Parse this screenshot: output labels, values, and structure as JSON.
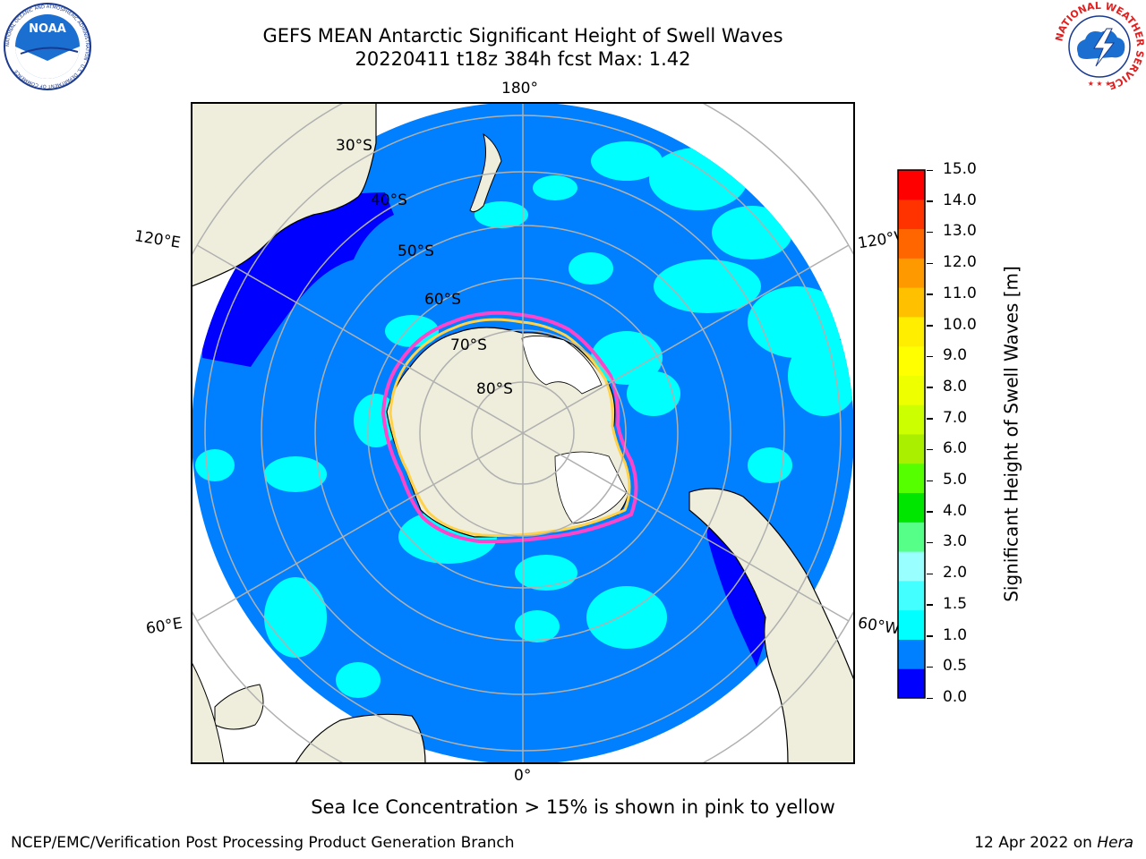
{
  "title": {
    "line1": "GEFS MEAN Antarctic Significant Height of Swell Waves",
    "line2": "20220411 t18z 384h fcst   Max: 1.42"
  },
  "map": {
    "projection": "south-polar-stereographic",
    "longitude_labels": {
      "top": "180°",
      "bottom": "0°",
      "upper_left": "120°E",
      "lower_left": "60°E",
      "upper_right": "120°W",
      "lower_right": "60°W"
    },
    "latitude_labels": [
      "30°S",
      "40°S",
      "50°S",
      "60°S",
      "70°S",
      "80°S"
    ],
    "colors": {
      "ocean_base": "#0080ff",
      "land": "#efeedc",
      "sea_ice": "#ffffff",
      "ice_edge_pink": "#ff44cc",
      "ice_edge_yellow": "#ffd24a",
      "grid": "#b0b0b0"
    }
  },
  "colorbar": {
    "label": "Significant Height of Swell Waves [m]",
    "ticks": [
      "15.0",
      "14.0",
      "13.0",
      "12.0",
      "11.0",
      "10.0",
      "9.0",
      "8.0",
      "7.0",
      "6.0",
      "5.0",
      "4.0",
      "3.0",
      "2.0",
      "1.5",
      "1.0",
      "0.5",
      "0.0"
    ],
    "colors": [
      "#0000ff",
      "#0080ff",
      "#00ffff",
      "#44ffff",
      "#99ffff",
      "#55ff88",
      "#00e600",
      "#55ff00",
      "#aaee00",
      "#ccff00",
      "#eeff00",
      "#ffff00",
      "#ffee00",
      "#ffc000",
      "#ff9900",
      "#ff6600",
      "#ff3300",
      "#ff0000"
    ]
  },
  "notes": {
    "ice": "Sea Ice Concentration > 15% is shown in pink to yellow"
  },
  "footer": {
    "left": "NCEP/EMC/Verification Post Processing Product Generation Branch",
    "right_prefix": "12 Apr 2022 on ",
    "right_machine": "Hera"
  },
  "logos": {
    "left": "NOAA",
    "left_ring": "NATIONAL OCEANIC AND ATMOSPHERIC ADMINISTRATION · U.S. DEPARTMENT OF COMMERCE",
    "right_ring": "NATIONAL WEATHER SERVICE"
  }
}
